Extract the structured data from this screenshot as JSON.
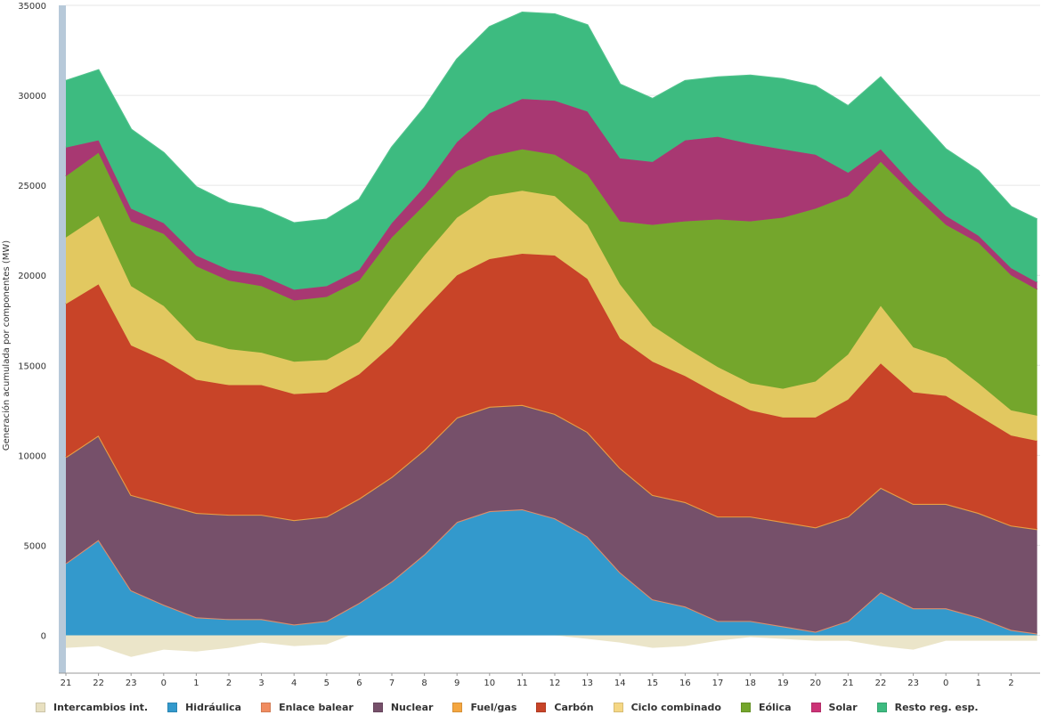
{
  "chart_data": {
    "type": "area",
    "stacked": true,
    "ylabel": "Generación acumulada por componentes (MW)",
    "ylim": [
      -2000,
      35000
    ],
    "yticks": [
      0,
      5000,
      10000,
      15000,
      20000,
      25000,
      30000,
      35000
    ],
    "ytick_labels": [
      "0",
      "5000",
      "10000",
      "15000",
      "20000",
      "25000",
      "30000",
      "35000"
    ],
    "grid": true,
    "legend_position": "bottom",
    "xticks": [
      {
        "x": 21,
        "label": "21"
      },
      {
        "x": 22,
        "label": "22"
      },
      {
        "x": 23,
        "label": "23"
      },
      {
        "x": 24,
        "label": "0"
      },
      {
        "x": 25,
        "label": "1"
      },
      {
        "x": 26,
        "label": "2"
      },
      {
        "x": 27,
        "label": "3"
      },
      {
        "x": 28,
        "label": "4"
      },
      {
        "x": 29,
        "label": "5"
      },
      {
        "x": 30,
        "label": "6"
      },
      {
        "x": 31,
        "label": "7"
      },
      {
        "x": 32,
        "label": "8"
      },
      {
        "x": 33,
        "label": "9"
      },
      {
        "x": 34,
        "label": "10"
      },
      {
        "x": 35,
        "label": "11"
      },
      {
        "x": 36,
        "label": "12"
      },
      {
        "x": 37,
        "label": "13"
      },
      {
        "x": 38,
        "label": "14"
      },
      {
        "x": 39,
        "label": "15"
      },
      {
        "x": 40,
        "label": "16"
      },
      {
        "x": 41,
        "label": "17"
      },
      {
        "x": 42,
        "label": "18"
      },
      {
        "x": 43,
        "label": "19"
      },
      {
        "x": 44,
        "label": "20"
      },
      {
        "x": 45,
        "label": "21"
      },
      {
        "x": 46,
        "label": "22"
      },
      {
        "x": 47,
        "label": "23"
      },
      {
        "x": 48,
        "label": "0"
      },
      {
        "x": 49,
        "label": "1"
      },
      {
        "x": 50,
        "label": "2"
      }
    ],
    "x": [
      21.0,
      22.0,
      23.0,
      24.0,
      25.0,
      26.0,
      27.0,
      28.0,
      29.0,
      30.0,
      31.0,
      32.0,
      33.0,
      34.0,
      35.0,
      36.0,
      37.0,
      38.0,
      39.0,
      40.0,
      41.0,
      42.0,
      43.0,
      44.0,
      45.0,
      46.0,
      47.0,
      48.0,
      49.0,
      50.0,
      50.8
    ],
    "series": [
      {
        "name": "Intercambios int.",
        "color": "#e8e0c0",
        "values": [
          -700,
          -600,
          -1200,
          -800,
          -900,
          -700,
          -400,
          -600,
          -500,
          200,
          400,
          400,
          600,
          500,
          100,
          0,
          -200,
          -400,
          -700,
          -600,
          -300,
          -100,
          -200,
          -300,
          -300,
          -600,
          -800,
          -300,
          -300,
          -300,
          -300
        ]
      },
      {
        "name": "Hidráulica",
        "color": "#3399cc",
        "values": [
          4000,
          5300,
          2500,
          1700,
          1000,
          900,
          900,
          600,
          800,
          1800,
          3000,
          4500,
          6300,
          6900,
          7000,
          6500,
          5500,
          3500,
          2000,
          1600,
          800,
          800,
          500,
          200,
          800,
          2400,
          1500,
          1500,
          1000,
          300,
          100
        ]
      },
      {
        "name": "Enlace balear",
        "color": "#f08c60",
        "values": [
          0,
          0,
          0,
          0,
          0,
          0,
          0,
          0,
          0,
          0,
          0,
          0,
          0,
          0,
          0,
          0,
          0,
          0,
          0,
          0,
          0,
          0,
          0,
          0,
          0,
          0,
          0,
          0,
          0,
          0,
          0
        ]
      },
      {
        "name": "Nuclear",
        "color": "#76506a",
        "values": [
          5900,
          5800,
          5300,
          5600,
          5800,
          5800,
          5800,
          5800,
          5800,
          5800,
          5800,
          5800,
          5800,
          5800,
          5800,
          5800,
          5800,
          5800,
          5800,
          5800,
          5800,
          5800,
          5800,
          5800,
          5800,
          5800,
          5800,
          5800,
          5800,
          5800,
          5800
        ]
      },
      {
        "name": "Fuel/gas",
        "color": "#f4a640",
        "values": [
          0,
          0,
          0,
          0,
          0,
          0,
          0,
          0,
          0,
          0,
          0,
          0,
          0,
          0,
          0,
          0,
          0,
          0,
          0,
          0,
          0,
          0,
          0,
          0,
          0,
          0,
          0,
          0,
          0,
          0,
          0
        ]
      },
      {
        "name": "Carbón",
        "color": "#c84428",
        "values": [
          8500,
          8400,
          8300,
          8000,
          7400,
          7200,
          7200,
          7000,
          6900,
          6900,
          7300,
          7800,
          7900,
          8200,
          8400,
          8800,
          8500,
          7200,
          7400,
          7000,
          6800,
          5900,
          5800,
          6100,
          6500,
          6900,
          6200,
          6000,
          5400,
          5000,
          4900
        ]
      },
      {
        "name": "Ciclo combinado",
        "color": "#e2c860",
        "values": [
          3700,
          3800,
          3300,
          3000,
          2200,
          2000,
          1800,
          1800,
          1800,
          1800,
          2700,
          3000,
          3200,
          3500,
          3500,
          3300,
          3000,
          3000,
          2000,
          1600,
          1500,
          1500,
          1600,
          2000,
          2500,
          3200,
          2500,
          2100,
          1800,
          1400,
          1400
        ]
      },
      {
        "name": "Eólica",
        "color": "#74a62c",
        "values": [
          3400,
          3500,
          3600,
          4000,
          4100,
          3800,
          3700,
          3400,
          3500,
          3400,
          3300,
          2800,
          2600,
          2200,
          2300,
          2300,
          2800,
          3500,
          5600,
          7000,
          8200,
          9000,
          9500,
          9600,
          8800,
          8000,
          8500,
          7400,
          7800,
          7500,
          7000
        ]
      },
      {
        "name": "Solar",
        "color": "#a83872",
        "values": [
          1600,
          700,
          700,
          600,
          600,
          600,
          600,
          600,
          600,
          600,
          800,
          1000,
          1600,
          2400,
          2800,
          3000,
          3500,
          3500,
          3500,
          4500,
          4600,
          4300,
          3800,
          3000,
          1300,
          700,
          500,
          500,
          400,
          400,
          400
        ]
      },
      {
        "name": "Resto reg. esp.",
        "color": "#3dbb80",
        "values": [
          3700,
          3900,
          4400,
          3900,
          3800,
          3700,
          3700,
          3700,
          3700,
          3900,
          4200,
          4400,
          4600,
          4800,
          4800,
          4800,
          4800,
          4100,
          3500,
          3300,
          3300,
          3800,
          3900,
          3800,
          3700,
          4000,
          4000,
          3700,
          3600,
          3400,
          3500
        ]
      }
    ]
  },
  "legend": {
    "items": [
      {
        "label": "Intercambios int.",
        "color": "#e8e0c0"
      },
      {
        "label": "Hidráulica",
        "color": "#3399cc"
      },
      {
        "label": "Enlace balear",
        "color": "#f08c60"
      },
      {
        "label": "Nuclear",
        "color": "#76506a"
      },
      {
        "label": "Fuel/gas",
        "color": "#f4a640"
      },
      {
        "label": "Carbón",
        "color": "#c84428"
      },
      {
        "label": "Ciclo combinado",
        "color": "#f5d784"
      },
      {
        "label": "Eólica",
        "color": "#74a62c"
      },
      {
        "label": "Solar",
        "color": "#cc3377"
      },
      {
        "label": "Resto reg. esp.",
        "color": "#3dbb80"
      }
    ]
  }
}
